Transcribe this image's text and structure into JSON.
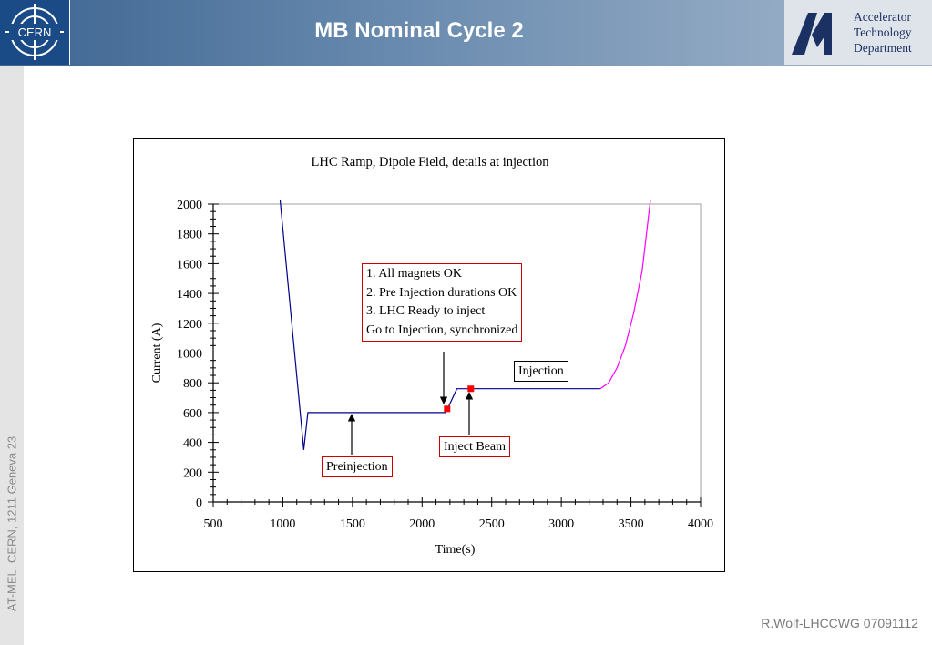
{
  "header": {
    "title": "MB Nominal Cycle 2",
    "cern_logo_text": "CERN",
    "atd_lines": [
      "Accelerator",
      "Technology",
      "Department"
    ]
  },
  "sidebar": {
    "text": "AT-MEL, CERN, 1211 Geneva 23"
  },
  "footer": {
    "text": "R.Wolf-LHCCWG 07091112"
  },
  "colors": {
    "header_start": "#3d6591",
    "cern_blue": "#1b4b86",
    "ramp_down_line": "#00008b",
    "ramp_up_line": "#ff00ff",
    "marker": "#ff0000",
    "callout_border_red": "#cc0000"
  },
  "chart_data": {
    "type": "line",
    "title": "LHC Ramp, Dipole Field, details at injection",
    "xlabel": "Time(s)",
    "ylabel": "Current (A)",
    "xlim": [
      500,
      4000
    ],
    "ylim": [
      0,
      2000
    ],
    "xticks": [
      "500",
      "1000",
      "1500",
      "2000",
      "2500",
      "3000",
      "3500",
      "4000"
    ],
    "yticks": [
      "0",
      "200",
      "400",
      "600",
      "800",
      "1000",
      "1200",
      "1400",
      "1600",
      "1800",
      "2000"
    ],
    "grid": false,
    "series": [
      {
        "color": "#00008b",
        "points": [
          [
            980,
            2030
          ],
          [
            1150,
            350
          ],
          [
            1180,
            600
          ],
          [
            2170,
            600
          ],
          [
            2250,
            760
          ],
          [
            3280,
            760
          ]
        ]
      },
      {
        "color": "#ff00ff",
        "points": [
          [
            3280,
            760
          ],
          [
            3340,
            800
          ],
          [
            3400,
            900
          ],
          [
            3460,
            1050
          ],
          [
            3520,
            1270
          ],
          [
            3580,
            1550
          ],
          [
            3640,
            2030
          ]
        ]
      }
    ],
    "markers": [
      [
        2180,
        625
      ],
      [
        2350,
        760
      ]
    ],
    "annotations": [
      {
        "lines": [
          "1. All magnets OK",
          "2. Pre Injection durations  OK",
          "3. LHC Ready to inject",
          "Go to Injection, synchronized"
        ],
        "border": "#cc0000"
      },
      {
        "lines": [
          "Injection"
        ],
        "border": "#000000"
      },
      {
        "lines": [
          "Inject Beam"
        ],
        "border": "#cc0000"
      },
      {
        "lines": [
          "Preinjection"
        ],
        "border": "#cc0000"
      }
    ]
  }
}
